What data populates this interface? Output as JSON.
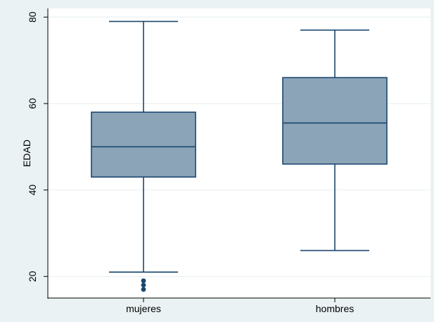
{
  "chart_data": {
    "type": "box",
    "title": "",
    "xlabel": "",
    "ylabel": "EDAD",
    "ylim": [
      15,
      82
    ],
    "yticks": [
      20,
      40,
      60,
      80
    ],
    "grid": true,
    "categories": [
      "mujeres",
      "hombres"
    ],
    "boxes": [
      {
        "category": "mujeres",
        "whisker_low": 21,
        "q1": 43,
        "median": 50,
        "q3": 58,
        "whisker_high": 79,
        "outliers": [
          17,
          18,
          19
        ]
      },
      {
        "category": "hombres",
        "whisker_low": 26,
        "q1": 46,
        "median": 55.5,
        "q3": 66,
        "whisker_high": 77,
        "outliers": []
      }
    ],
    "colors": {
      "background": "#eaf2f3",
      "plot_area": "#ffffff",
      "grid": "#e6eef0",
      "box_fill": "#8ca4b8",
      "box_stroke": "#1a476f",
      "axis": "#000000"
    }
  }
}
